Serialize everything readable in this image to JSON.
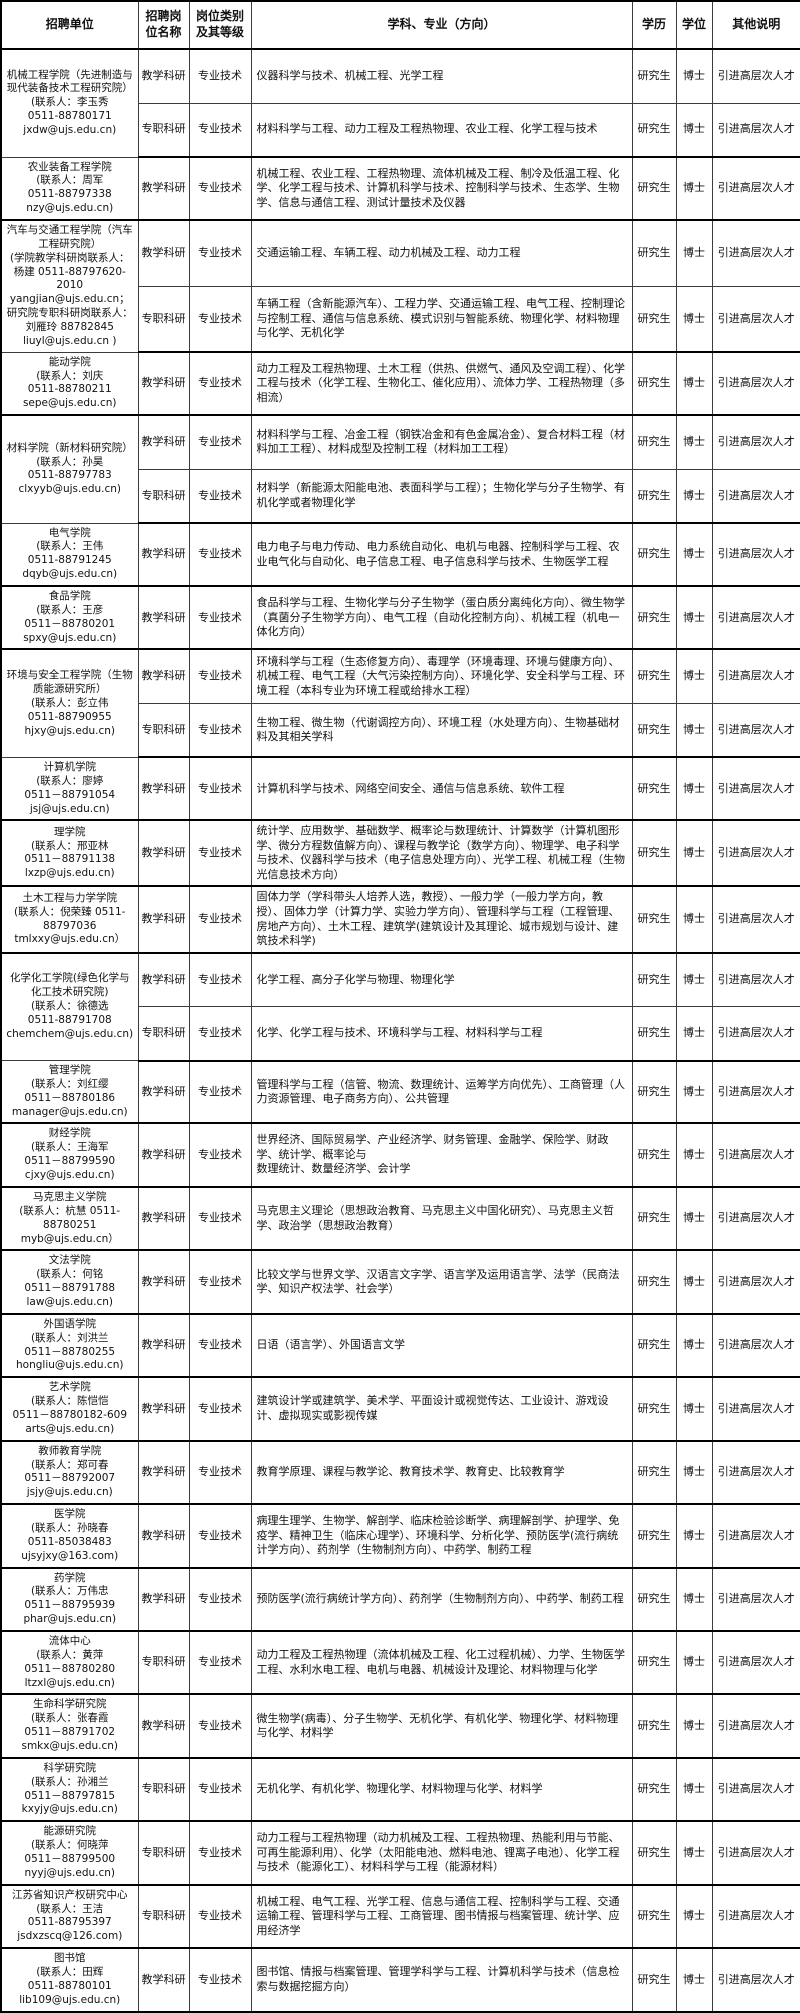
{
  "table": {
    "headers": [
      "招聘单位",
      "招聘岗\n位名称",
      "岗位类别\n及其等级",
      "学科、专业（方向）",
      "学历",
      "学位",
      "其他说明"
    ],
    "groups": [
      {
        "unit": "机械工程学院（先进制造与\n现代装备技术工程研究院）\n(联系人：李玉秀\n0511-88780171\njxdw@ujs.edu.cn)",
        "rows": [
          {
            "post": "教学科研",
            "category": "专业技术",
            "majors": "仪器科学与技术、机械工程、光学工程",
            "education": "研究生",
            "degree": "博士",
            "note": "引进高层次人才"
          },
          {
            "post": "专职科研",
            "category": "专业技术",
            "majors": "材料科学与工程、动力工程及工程热物理、农业工程、化学工程与技术",
            "education": "研究生",
            "degree": "博士",
            "note": "引进高层次人才"
          }
        ]
      },
      {
        "unit": "农业装备工程学院\n(联系人：周军\n0511-88797338\nnzy@ujs.edu.cn)",
        "rows": [
          {
            "post": "教学科研",
            "category": "专业技术",
            "majors": "机械工程、农业工程、工程热物理、流体机械及工程、制冷及低温工程、化学、化学工程与技术、计算机科学与技术、控制科学与技术、生态学、生物学、信息与通信工程、测试计量技术及仪器",
            "education": "研究生",
            "degree": "博士",
            "note": "引进高层次人才"
          }
        ]
      },
      {
        "unit": "汽车与交通工程学院（汽车\n工程研究院）\n(学院教学科研岗联系人：\n杨建 0511-88797620-2010\nyangjian@ujs.edu.cn；\n研究院专职科研岗联系人：\n刘雁玲 88782845\nliuyl@ujs.edu.cn )",
        "rows": [
          {
            "post": "教学科研",
            "category": "专业技术",
            "majors": "交通运输工程、车辆工程、动力机械及工程、动力工程",
            "education": "研究生",
            "degree": "博士",
            "note": "引进高层次人才"
          },
          {
            "post": "专职科研",
            "category": "专业技术",
            "majors": "车辆工程（含新能源汽车）、工程力学、交通运输工程、电气工程、控制理论与控制工程、通信与信息系统、模式识别与智能系统、物理化学、材料物理与化学、无机化学",
            "education": "研究生",
            "degree": "博士",
            "note": "引进高层次人才"
          }
        ]
      },
      {
        "unit": "能动学院\n(联系人：刘庆\n0511-88780211\nsepe@ujs.edu.cn)",
        "rows": [
          {
            "post": "教学科研",
            "category": "专业技术",
            "majors": "动力工程及工程热物理、土木工程（供热、供燃气、通风及空调工程）、化学工程与技术（化学工程、生物化工、催化应用）、流体力学、工程热物理（多相流）",
            "education": "研究生",
            "degree": "博士",
            "note": "引进高层次人才"
          }
        ]
      },
      {
        "unit": "材料学院（新材料研究院）\n(联系人：孙昊\n0511-88797783\nclxyyb@ujs.edu.cn)",
        "rows": [
          {
            "post": "教学科研",
            "category": "专业技术",
            "majors": "材料科学与工程、冶金工程（钢铁冶金和有色金属冶金）、复合材料工程（材料加工工程）、材料成型及控制工程（材料加工工程）",
            "education": "研究生",
            "degree": "博士",
            "note": "引进高层次人才"
          },
          {
            "post": "专职科研",
            "category": "专业技术",
            "majors": "材料学（新能源太阳能电池、表面科学与工程）；生物化学与分子生物学、有机化学或者物理化学",
            "education": "研究生",
            "degree": "博士",
            "note": "引进高层次人才"
          }
        ]
      },
      {
        "unit": "电气学院\n(联系人：王伟\n0511-88791245\ndqyb@ujs.edu.cn)",
        "rows": [
          {
            "post": "教学科研",
            "category": "专业技术",
            "majors": "电力电子与电力传动、电力系统自动化、电机与电器、控制科学与工程、农业电气化与自动化、电子信息工程、电子信息科学与技术、生物医学工程",
            "education": "研究生",
            "degree": "博士",
            "note": "引进高层次人才"
          }
        ]
      },
      {
        "unit": "食品学院\n(联系人：王彦\n0511－88780201\nspxy@ujs.edu.cn)",
        "rows": [
          {
            "post": "教学科研",
            "category": "专业技术",
            "majors": "食品科学与工程、生物化学与分子生物学（蛋白质分离纯化方向）、微生物学（真菌分子生物学方向）、电气工程（自动化控制方向）、机械工程（机电一体化方向）",
            "education": "研究生",
            "degree": "博士",
            "note": "引进高层次人才"
          }
        ]
      },
      {
        "unit": "环境与安全工程学院（生物\n质能源研究所）\n(联系人：彭立伟\n0511-88790955\nhjxy@ujs.edu.cn)",
        "rows": [
          {
            "post": "教学科研",
            "category": "专业技术",
            "majors": "环境科学与工程（生态修复方向）、毒理学（环境毒理、环境与健康方向）、机械工程、电气工程（大气污染控制方向）、环境化学、安全科学与工程、环境工程（本科专业为环境工程或给排水工程）",
            "education": "研究生",
            "degree": "博士",
            "note": "引进高层次人才"
          },
          {
            "post": "专职科研",
            "category": "专业技术",
            "majors": "生物工程、微生物（代谢调控方向）、环境工程（水处理方向）、生物基础材料及其相关学科",
            "education": "研究生",
            "degree": "博士",
            "note": "引进高层次人才"
          }
        ]
      },
      {
        "unit": "计算机学院\n(联系人：廖婷\n0511－88791054\njsj@ujs.edu.cn)",
        "rows": [
          {
            "post": "教学科研",
            "category": "专业技术",
            "majors": "计算机科学与技术、网络空间安全、通信与信息系统、软件工程",
            "education": "研究生",
            "degree": "博士",
            "note": "引进高层次人才"
          }
        ]
      },
      {
        "unit": "理学院\n(联系人：邢亚林\n0511－88791138\nlxzp@ujs.edu.cn)",
        "rows": [
          {
            "post": "教学科研",
            "category": "专业技术",
            "majors": "统计学、应用数学、基础数学、概率论与数理统计、计算数学（计算机图形学、微分方程数值解方向）、课程与教学论（数学方向）、物理学、电子科学与技术、仪器科学与技术（电子信息处理方向）、光学工程、机械工程（生物光信息技术方向）",
            "education": "研究生",
            "degree": "博士",
            "note": "引进高层次人才"
          }
        ]
      },
      {
        "unit": "土木工程与力学学院\n(联系人：倪荣臻 0511-\n88797036\ntmlxxy@ujs.edu.cn）",
        "rows": [
          {
            "post": "教学科研",
            "category": "专业技术",
            "majors": "固体力学（学科带头人培养人选，教授）、一般力学（一般力学方向，教授）、固体力学（计算力学、实验力学方向）、管理科学与工程（工程管理、房地产方向）、土木工程、建筑学(建筑设计及其理论、城市规划与设计、建筑技术科学)",
            "education": "研究生",
            "degree": "博士",
            "note": "引进高层次人才"
          }
        ]
      },
      {
        "unit": "化学化工学院(绿色化学与\n化工技术研究院)\n(联系人：徐德选\n0511-88791708\nchemchem@ujs.edu.cn)",
        "rows": [
          {
            "post": "教学科研",
            "category": "专业技术",
            "majors": "化学工程、高分子化学与物理、物理化学",
            "education": "研究生",
            "degree": "博士",
            "note": "引进高层次人才"
          },
          {
            "post": "专职科研",
            "category": "专业技术",
            "majors": "化学、化学工程与技术、环境科学与工程、材料科学与工程",
            "education": "研究生",
            "degree": "博士",
            "note": "引进高层次人才"
          }
        ]
      },
      {
        "unit": "管理学院\n(联系人：刘红缨\n0511－88780186\nmanager@ujs.edu.cn)",
        "rows": [
          {
            "post": "教学科研",
            "category": "专业技术",
            "majors": "管理科学与工程（信管、物流、数理统计、运筹学方向优先）、工商管理（人力资源管理、电子商务方向）、公共管理",
            "education": "研究生",
            "degree": "博士",
            "note": "引进高层次人才"
          }
        ]
      },
      {
        "unit": "财经学院\n(联系人：王海军\n0511－88799590\ncjxy@ujs.edu.cn)",
        "rows": [
          {
            "post": "教学科研",
            "category": "专业技术",
            "majors": "世界经济、国际贸易学、产业经济学、财务管理、金融学、保险学、财政学、统计学、概率论与\n数理统计、数量经济学、会计学",
            "education": "研究生",
            "degree": "博士",
            "note": "引进高层次人才"
          }
        ]
      },
      {
        "unit": "马克思主义学院\n(联系人：杭慧 0511-\n88780251\nmyb@ujs.edu.cn）",
        "rows": [
          {
            "post": "教学科研",
            "category": "专业技术",
            "majors": "马克思主义理论（思想政治教育、马克思主义中国化研究）、马克思主义哲学、政治学（思想政治教育）",
            "education": "研究生",
            "degree": "博士",
            "note": "引进高层次人才"
          }
        ]
      },
      {
        "unit": "文法学院\n(联系人：何铭\n0511－88791788\nlaw@ujs.edu.cn)",
        "rows": [
          {
            "post": "教学科研",
            "category": "专业技术",
            "majors": "比较文学与世界文学、汉语言文字学、语言学及运用语言学、法学（民商法学、知识产权法学、社会学）",
            "education": "研究生",
            "degree": "博士",
            "note": "引进高层次人才"
          }
        ]
      },
      {
        "unit": "外国语学院\n(联系人：刘洪兰\n0511－88780255\nhongliu@ujs.edu.cn)",
        "rows": [
          {
            "post": "教学科研",
            "category": "专业技术",
            "majors": "日语（语言学）、外国语言文学",
            "education": "研究生",
            "degree": "博士",
            "note": "引进高层次人才"
          }
        ]
      },
      {
        "unit": "艺术学院\n(联系人：陈恺恺\n0511－88780182-609\narts@ujs.edu.cn)",
        "rows": [
          {
            "post": "教学科研",
            "category": "专业技术",
            "majors": "建筑设计学或建筑学、美术学、平面设计或视觉传达、工业设计、游戏设计、虚拟现实或影视传媒",
            "education": "研究生",
            "degree": "博士",
            "note": "引进高层次人才"
          }
        ]
      },
      {
        "unit": "教师教育学院\n(联系人：郑可春\n0511－88792007\njsjy@ujs.edu.cn)",
        "rows": [
          {
            "post": "教学科研",
            "category": "专业技术",
            "majors": "教育学原理、课程与教学论、教育技术学、教育史、比较教育学",
            "education": "研究生",
            "degree": "博士",
            "note": "引进高层次人才"
          }
        ]
      },
      {
        "unit": "医学院\n(联系人：孙晓春\n0511-85038483\nujsyjxy@163.com)",
        "rows": [
          {
            "post": "教学科研",
            "category": "专业技术",
            "majors": "病理生理学、生物学、解剖学、临床检验诊断学、病理解剖学、护理学、免疫学、精神卫生（临床心理学）、环境科学、分析化学、预防医学(流行病统计学方向）、药剂学（生物制剂方向）、中药学、制药工程",
            "education": "研究生",
            "degree": "博士",
            "note": "引进高层次人才"
          }
        ]
      },
      {
        "unit": "药学院\n(联系人：万伟忠\n0511－88795939\nphar@ujs.edu.cn)",
        "rows": [
          {
            "post": "教学科研",
            "category": "专业技术",
            "majors": "预防医学(流行病统计学方向）、药剂学（生物制剂方向）、中药学、制药工程",
            "education": "研究生",
            "degree": "博士",
            "note": "引进高层次人才"
          }
        ]
      },
      {
        "unit": "流体中心\n(联系人：黄萍\n0511－88780280\nltzxl@ujs.edu.cn)",
        "rows": [
          {
            "post": "专职科研",
            "category": "专业技术",
            "majors": "动力工程及工程热物理（流体机械及工程、化工过程机械）、力学、生物医学工程、水利水电工程、电机与电器、机械设计及理论、材料物理与化学",
            "education": "研究生",
            "degree": "博士",
            "note": "引进高层次人才"
          }
        ]
      },
      {
        "unit": "生命科学研究院\n(联系人：张春霞\n0511－88791702\nsmkx@ujs.edu.cn)",
        "rows": [
          {
            "post": "教学科研",
            "category": "专业技术",
            "majors": "微生物学(病毒）、分子生物学、无机化学、有机化学、物理化学、材料物理与化学、材料学",
            "education": "研究生",
            "degree": "博士",
            "note": "引进高层次人才"
          }
        ]
      },
      {
        "unit": "科学研究院\n(联系人：孙湘兰\n0511－88797815\nkxyjy@ujs.edu.cn)",
        "rows": [
          {
            "post": "专职科研",
            "category": "专业技术",
            "majors": "无机化学、有机化学、物理化学、材料物理与化学、材料学",
            "education": "研究生",
            "degree": "博士",
            "note": "引进高层次人才"
          }
        ]
      },
      {
        "unit": "能源研究院\n(联系人：何晓萍\n0511－88799500\nnyyj@ujs.edu.cn)",
        "rows": [
          {
            "post": "专职科研",
            "category": "专业技术",
            "majors": "动力工程与工程热物理（动力机械及工程、工程热物理、热能利用与节能、可再生能源利用）、化学（太阳能电池、燃料电池、锂离子电池）、化学工程与技术（能源化工）、材料科学与工程（能源材料）",
            "education": "研究生",
            "degree": "博士",
            "note": "引进高层次人才"
          }
        ]
      },
      {
        "unit": "江苏省知识产权研究中心\n(联系人：王洁\n0511-88795397\njsdxzscq@126.com)",
        "rows": [
          {
            "post": "专职科研",
            "category": "专业技术",
            "majors": "机械工程、电气工程、光学工程、信息与通信工程、控制科学与工程、交通运输工程、管理科学与工程、工商管理、图书情报与档案管理、统计学、应用经济学",
            "education": "研究生",
            "degree": "博士",
            "note": "引进高层次人才"
          }
        ]
      },
      {
        "unit": "图书馆\n(联系人：田辉\n0511-88780101\nlib109@ujs.edu.cn)",
        "rows": [
          {
            "post": "教学科研",
            "category": "专业技术",
            "majors": "图书馆、情报与档案管理、管理学科学与工程、计算机科学与技术（信息检索与数据挖掘方向）",
            "education": "研究生",
            "degree": "博士",
            "note": "引进高层次人才"
          }
        ]
      }
    ]
  }
}
